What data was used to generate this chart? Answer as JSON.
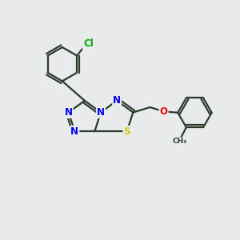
{
  "bg_color": "#e8eaeb",
  "bond_color": "#2a3a2a",
  "bond_width": 1.6,
  "atom_colors": {
    "N": "#0000ee",
    "S": "#cccc00",
    "O": "#ee0000",
    "Cl": "#00aa00",
    "C": "#2a3a2a"
  },
  "font_size": 8.5
}
